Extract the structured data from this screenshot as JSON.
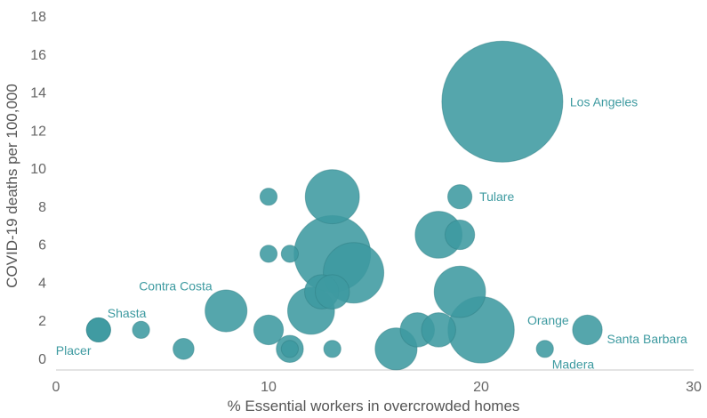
{
  "chart_data": {
    "type": "scatter",
    "title": "",
    "xlabel": "% Essential workers in overcrowded homes",
    "ylabel": "COVID-19 deaths per 100,000",
    "xlim": [
      0,
      30
    ],
    "ylim": [
      0,
      18
    ],
    "xticks": [
      0,
      10,
      20,
      30
    ],
    "yticks": [
      0,
      2,
      4,
      6,
      8,
      10,
      12,
      14,
      16,
      18
    ],
    "grid": false,
    "bubble_color": "#3d9aa0",
    "label_color": "#3d9aa0",
    "points": [
      {
        "x": 21,
        "y": 13.5,
        "size": 100,
        "label": "Los Angeles"
      },
      {
        "x": 19,
        "y": 8.5,
        "size": 4,
        "label": "Tulare"
      },
      {
        "x": 2,
        "y": 1.5,
        "size": 4,
        "label": "Shasta"
      },
      {
        "x": 2,
        "y": 1.5,
        "size": 4,
        "label": "Placer"
      },
      {
        "x": 8,
        "y": 2.5,
        "size": 12,
        "label": "Contra Costa"
      },
      {
        "x": 20,
        "y": 1.5,
        "size": 30,
        "label": "Orange"
      },
      {
        "x": 25,
        "y": 1.5,
        "size": 6,
        "label": "Santa Barbara"
      },
      {
        "x": 23,
        "y": 0.5,
        "size": 2,
        "label": "Madera"
      },
      {
        "x": 4,
        "y": 1.5,
        "size": 2,
        "label": ""
      },
      {
        "x": 6,
        "y": 0.5,
        "size": 3,
        "label": ""
      },
      {
        "x": 10,
        "y": 8.5,
        "size": 2,
        "label": ""
      },
      {
        "x": 10,
        "y": 5.5,
        "size": 2,
        "label": ""
      },
      {
        "x": 11,
        "y": 5.5,
        "size": 2,
        "label": ""
      },
      {
        "x": 10,
        "y": 1.5,
        "size": 6,
        "label": ""
      },
      {
        "x": 11,
        "y": 0.5,
        "size": 5,
        "label": ""
      },
      {
        "x": 11,
        "y": 0.5,
        "size": 2,
        "label": ""
      },
      {
        "x": 13,
        "y": 8.5,
        "size": 20,
        "label": ""
      },
      {
        "x": 13,
        "y": 5.5,
        "size": 40,
        "label": ""
      },
      {
        "x": 14,
        "y": 4.5,
        "size": 25,
        "label": ""
      },
      {
        "x": 12.5,
        "y": 3.5,
        "size": 8,
        "label": ""
      },
      {
        "x": 13,
        "y": 3.5,
        "size": 8,
        "label": ""
      },
      {
        "x": 12,
        "y": 2.5,
        "size": 15,
        "label": ""
      },
      {
        "x": 13,
        "y": 0.5,
        "size": 2,
        "label": ""
      },
      {
        "x": 16,
        "y": 0.5,
        "size": 12,
        "label": ""
      },
      {
        "x": 17,
        "y": 1.5,
        "size": 8,
        "label": ""
      },
      {
        "x": 18,
        "y": 1.5,
        "size": 8,
        "label": ""
      },
      {
        "x": 18,
        "y": 6.5,
        "size": 15,
        "label": ""
      },
      {
        "x": 19,
        "y": 6.5,
        "size": 6,
        "label": ""
      },
      {
        "x": 19,
        "y": 3.5,
        "size": 18,
        "label": ""
      }
    ]
  }
}
